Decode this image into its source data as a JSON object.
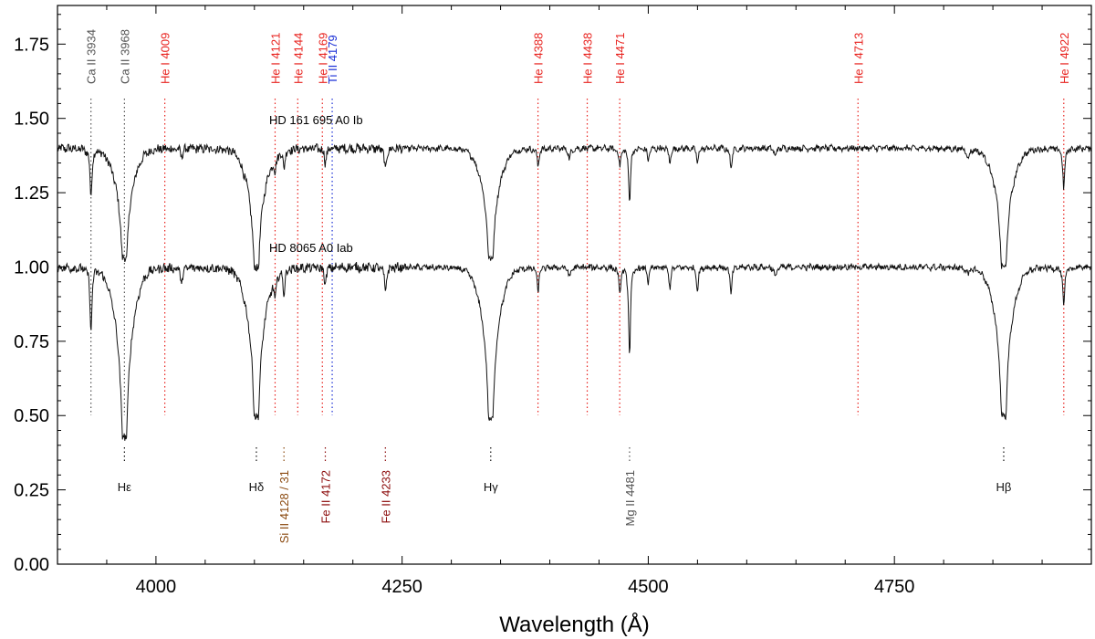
{
  "chart_data": {
    "type": "line",
    "title": "",
    "xlabel": "Wavelength (Å)",
    "ylabel": "",
    "xlim": [
      3900,
      4950
    ],
    "ylim": [
      0.0,
      1.88
    ],
    "x_ticks": [
      4000,
      4250,
      4500,
      4750
    ],
    "x_tick_labels": [
      "4000",
      "4250",
      "4500",
      "4750"
    ],
    "y_ticks": [
      0.0,
      0.25,
      0.5,
      0.75,
      1.0,
      1.25,
      1.5,
      1.75
    ],
    "y_tick_labels": [
      "0.00",
      "0.25",
      "0.50",
      "0.75",
      "1.00",
      "1.25",
      "1.50",
      "1.75"
    ],
    "grid": false,
    "colors": {
      "He": "#e8231f",
      "Fe": "#8b0a0a",
      "Si": "#8b4a10",
      "Ti": "#1a2fd6",
      "gray": "#555555",
      "black": "#111111"
    },
    "series": [
      {
        "name": "HD 161 695 A0 Ib",
        "label": "HD 161 695   A0 Ib",
        "continuum": 1.4,
        "label_x": 4115,
        "label_y": 1.48,
        "absorption_lines": [
          {
            "x": 3934,
            "depth": 0.17
          },
          {
            "x": 3968,
            "depth": 0.37
          },
          {
            "x": 4026,
            "depth": 0.03
          },
          {
            "x": 4102,
            "depth": 0.4
          },
          {
            "x": 4121,
            "depth": 0.05
          },
          {
            "x": 4130,
            "depth": 0.06
          },
          {
            "x": 4172,
            "depth": 0.05
          },
          {
            "x": 4233,
            "depth": 0.08
          },
          {
            "x": 4340,
            "depth": 0.37
          },
          {
            "x": 4388,
            "depth": 0.06
          },
          {
            "x": 4420,
            "depth": 0.04
          },
          {
            "x": 4471,
            "depth": 0.06
          },
          {
            "x": 4481,
            "depth": 0.18
          },
          {
            "x": 4500,
            "depth": 0.04
          },
          {
            "x": 4522,
            "depth": 0.05
          },
          {
            "x": 4550,
            "depth": 0.05
          },
          {
            "x": 4584,
            "depth": 0.07
          },
          {
            "x": 4629,
            "depth": 0.03
          },
          {
            "x": 4825,
            "depth": 0.04
          },
          {
            "x": 4861,
            "depth": 0.4
          },
          {
            "x": 4922,
            "depth": 0.14
          }
        ]
      },
      {
        "name": "HD 8065 A0 Iab",
        "label": "HD 8065   A0 Iab",
        "continuum": 1.0,
        "label_x": 4115,
        "label_y": 1.05,
        "absorption_lines": [
          {
            "x": 3934,
            "depth": 0.22
          },
          {
            "x": 3968,
            "depth": 0.57
          },
          {
            "x": 4026,
            "depth": 0.06
          },
          {
            "x": 4102,
            "depth": 0.5
          },
          {
            "x": 4121,
            "depth": 0.07
          },
          {
            "x": 4130,
            "depth": 0.08
          },
          {
            "x": 4172,
            "depth": 0.06
          },
          {
            "x": 4233,
            "depth": 0.09
          },
          {
            "x": 4340,
            "depth": 0.51
          },
          {
            "x": 4388,
            "depth": 0.08
          },
          {
            "x": 4420,
            "depth": 0.04
          },
          {
            "x": 4471,
            "depth": 0.09
          },
          {
            "x": 4481,
            "depth": 0.3
          },
          {
            "x": 4500,
            "depth": 0.05
          },
          {
            "x": 4522,
            "depth": 0.07
          },
          {
            "x": 4550,
            "depth": 0.08
          },
          {
            "x": 4584,
            "depth": 0.09
          },
          {
            "x": 4629,
            "depth": 0.04
          },
          {
            "x": 4825,
            "depth": 0.03
          },
          {
            "x": 4861,
            "depth": 0.5
          },
          {
            "x": 4922,
            "depth": 0.14
          }
        ]
      }
    ],
    "top_labels": [
      {
        "text": "Ca II 3934",
        "x": 3934,
        "color": "gray"
      },
      {
        "text": "Ca II 3968",
        "x": 3968,
        "color": "gray"
      },
      {
        "text": "He I 4009",
        "x": 4009,
        "color": "He"
      },
      {
        "text": "He I 4121",
        "x": 4121,
        "color": "He"
      },
      {
        "text": "He I 4144",
        "x": 4144,
        "color": "He"
      },
      {
        "text": "He I 4169",
        "x": 4169,
        "color": "He"
      },
      {
        "text": "Ti II 4179",
        "x": 4179,
        "color": "Ti"
      },
      {
        "text": "He I 4388",
        "x": 4388,
        "color": "He"
      },
      {
        "text": "He I 4438",
        "x": 4438,
        "color": "He"
      },
      {
        "text": "He I 4471",
        "x": 4471,
        "color": "He"
      },
      {
        "text": "He I 4713",
        "x": 4713,
        "color": "He"
      },
      {
        "text": "He I 4922",
        "x": 4922,
        "color": "He"
      }
    ],
    "bottom_labels": [
      {
        "text": "Hε",
        "x": 3968,
        "color": "black",
        "rotate": false
      },
      {
        "text": "Hδ",
        "x": 4102,
        "color": "black",
        "rotate": false
      },
      {
        "text": "Si II 4128 / 31",
        "x": 4130,
        "color": "Si",
        "rotate": true
      },
      {
        "text": "Fe II 4172",
        "x": 4172,
        "color": "Fe",
        "rotate": true
      },
      {
        "text": "Fe II 4233",
        "x": 4233,
        "color": "Fe",
        "rotate": true
      },
      {
        "text": "Hγ",
        "x": 4340,
        "color": "black",
        "rotate": false
      },
      {
        "text": "Mg II 4481",
        "x": 4481,
        "color": "gray",
        "rotate": true
      },
      {
        "text": "Hβ",
        "x": 4861,
        "color": "black",
        "rotate": false
      }
    ]
  }
}
